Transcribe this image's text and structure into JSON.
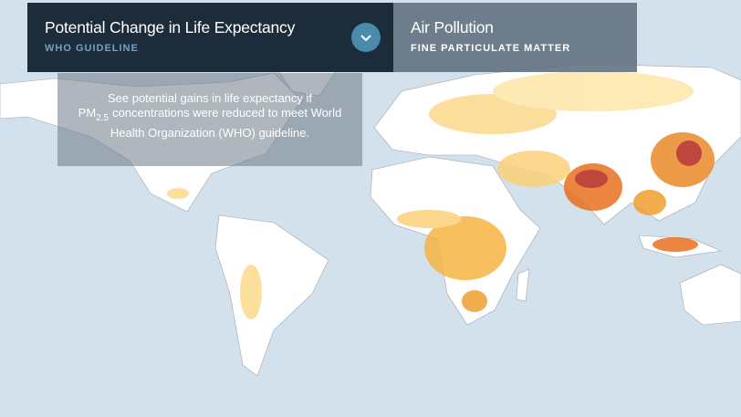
{
  "tabs": [
    {
      "title": "Potential Change in Life Expectancy",
      "subtitle": "WHO GUIDELINE"
    },
    {
      "title": "Air Pollution",
      "subtitle": "FINE PARTICULATE MATTER"
    }
  ],
  "description": {
    "before": "See potential gains in life expectancy if PM",
    "subscript": "2.5",
    "after": "concentrations were reduced to meet World Health Organization (WHO) guideline."
  }
}
